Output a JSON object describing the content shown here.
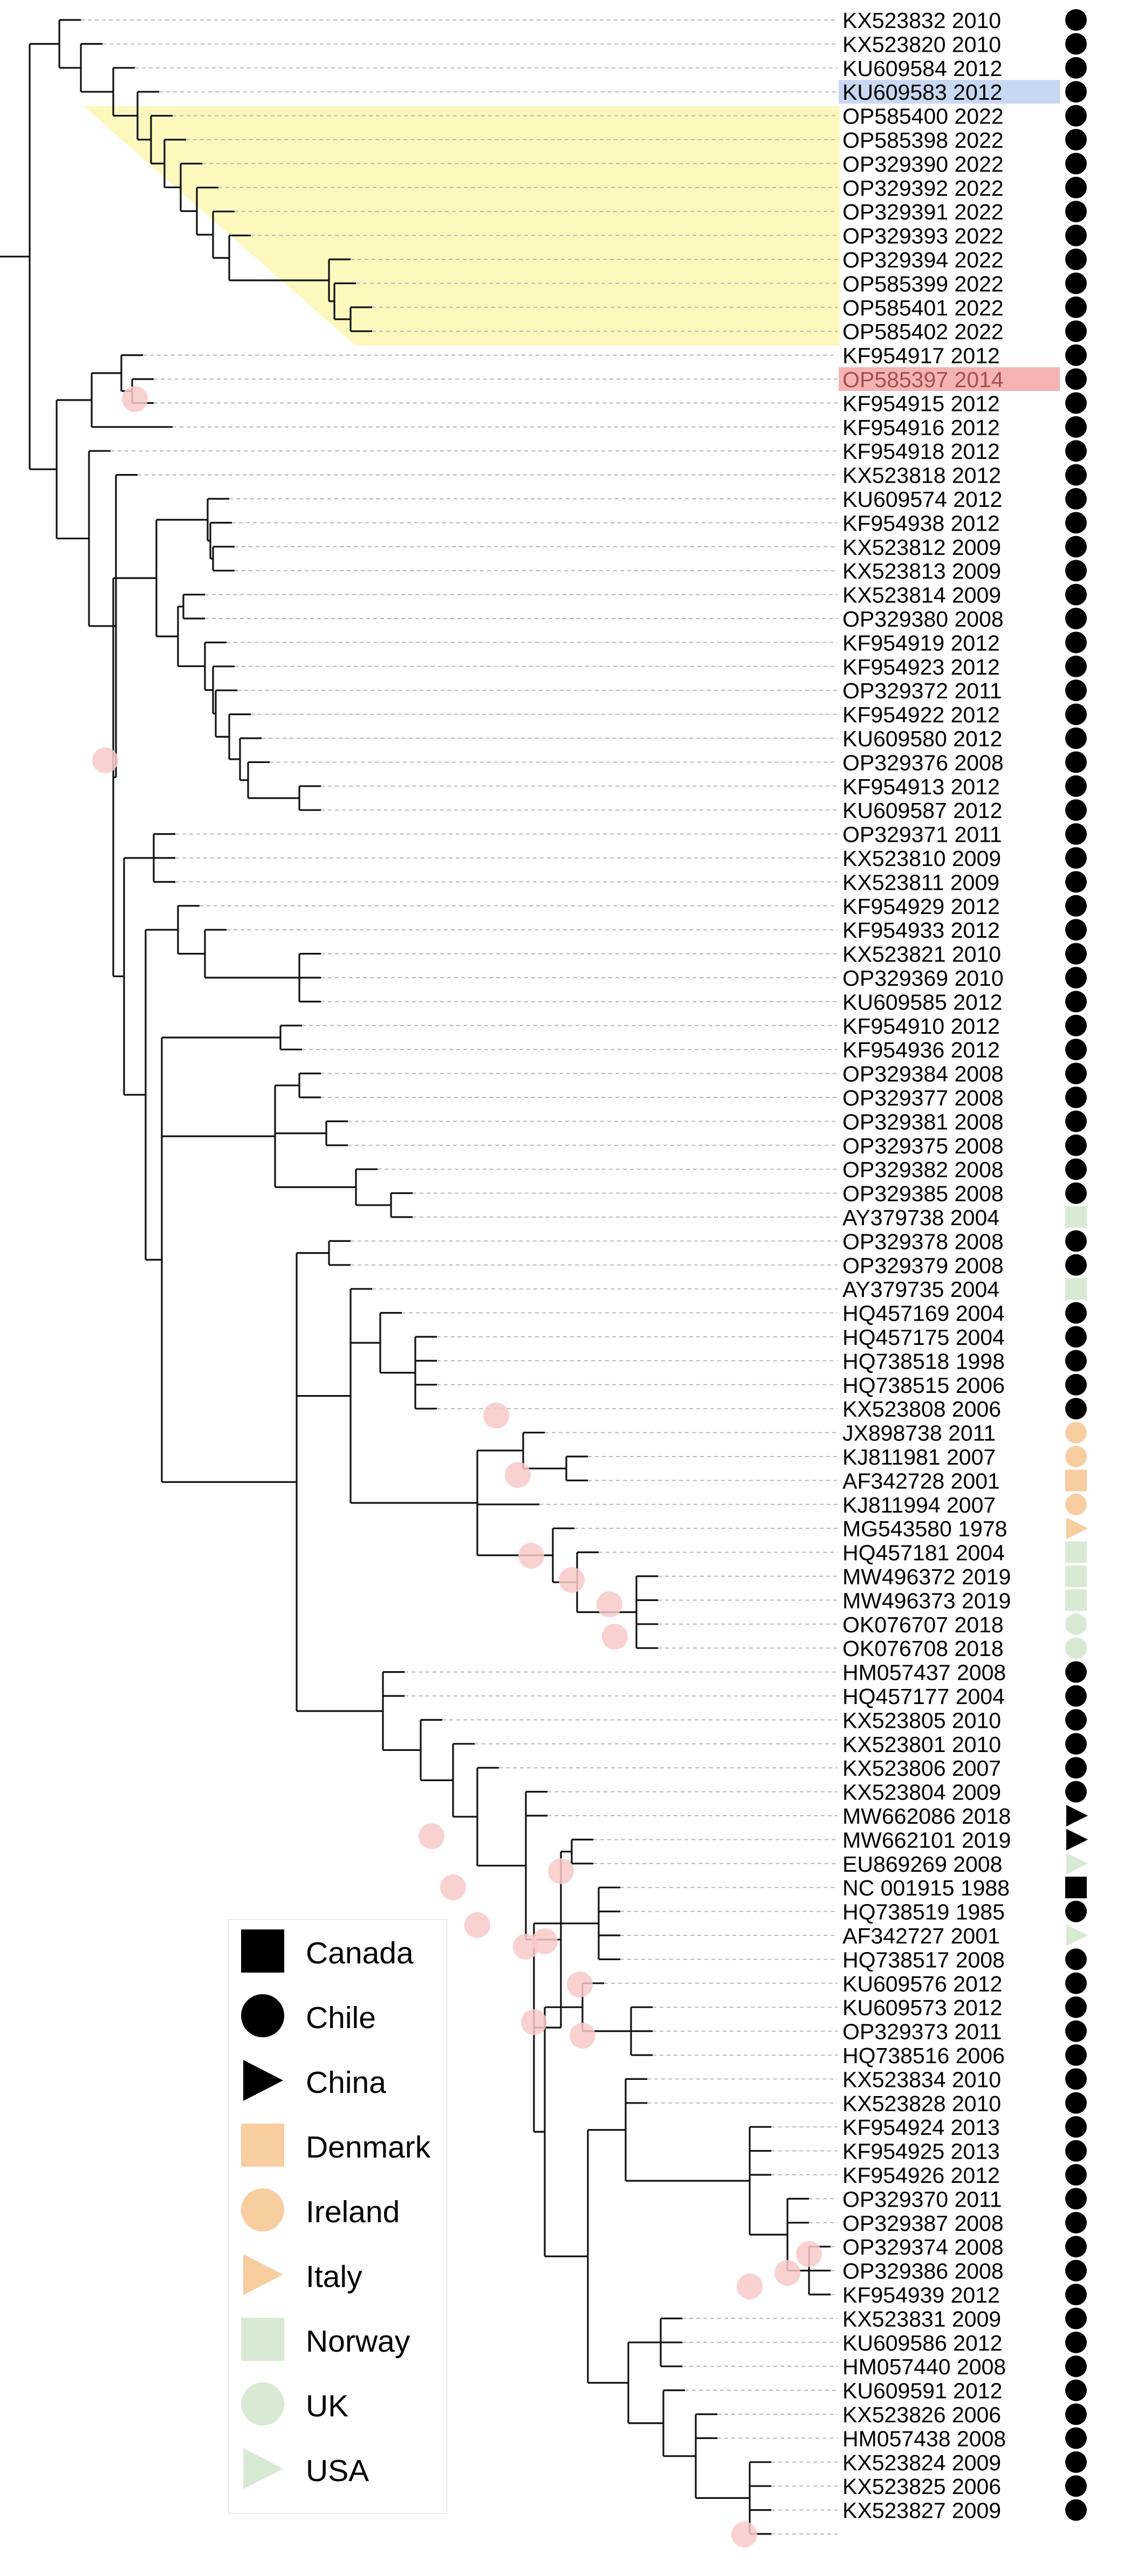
{
  "colors": {
    "black": "#000000",
    "highlight_blue": "#c9d8f2",
    "highlight_red": "#f6b3b3",
    "highlight_yellow": "#fdf8bd",
    "denmark": "#f8cda0",
    "ireland": "#f8cda0",
    "italy": "#f8cda0",
    "norway": "#d8ead3",
    "uk": "#d8ead3",
    "usa": "#d8ead3",
    "node_support": "#f9c9c9"
  },
  "legend": {
    "items": [
      {
        "label": "Canada",
        "shape": "square",
        "color": "#000000"
      },
      {
        "label": "Chile",
        "shape": "circle",
        "color": "#000000"
      },
      {
        "label": "China",
        "shape": "triangle",
        "color": "#000000"
      },
      {
        "label": "Denmark",
        "shape": "square",
        "color": "#f8cda0"
      },
      {
        "label": "Ireland",
        "shape": "circle",
        "color": "#f8cda0"
      },
      {
        "label": "Italy",
        "shape": "triangle",
        "color": "#f8cda0"
      },
      {
        "label": "Norway",
        "shape": "square",
        "color": "#d8ead3"
      },
      {
        "label": "UK",
        "shape": "circle",
        "color": "#d8ead3"
      },
      {
        "label": "USA",
        "shape": "triangle",
        "color": "#d8ead3"
      }
    ]
  },
  "tips": [
    {
      "label": "KX523832 2010",
      "country": "Chile"
    },
    {
      "label": "KX523820 2010",
      "country": "Chile"
    },
    {
      "label": "KU609584 2012",
      "country": "Chile"
    },
    {
      "label": "KU609583 2012",
      "country": "Chile",
      "highlight": "blue"
    },
    {
      "label": "OP585400 2022",
      "country": "Chile",
      "highlight": "yellow"
    },
    {
      "label": "OP585398 2022",
      "country": "Chile",
      "highlight": "yellow"
    },
    {
      "label": "OP329390 2022",
      "country": "Chile",
      "highlight": "yellow"
    },
    {
      "label": "OP329392 2022",
      "country": "Chile",
      "highlight": "yellow"
    },
    {
      "label": "OP329391 2022",
      "country": "Chile",
      "highlight": "yellow"
    },
    {
      "label": "OP329393 2022",
      "country": "Chile",
      "highlight": "yellow"
    },
    {
      "label": "OP329394 2022",
      "country": "Chile",
      "highlight": "yellow"
    },
    {
      "label": "OP585399 2022",
      "country": "Chile",
      "highlight": "yellow"
    },
    {
      "label": "OP585401 2022",
      "country": "Chile",
      "highlight": "yellow"
    },
    {
      "label": "OP585402 2022",
      "country": "Chile",
      "highlight": "yellow"
    },
    {
      "label": "KF954917 2012",
      "country": "Chile"
    },
    {
      "label": "OP585397 2014",
      "country": "Chile",
      "highlight": "red"
    },
    {
      "label": "KF954915 2012",
      "country": "Chile"
    },
    {
      "label": "KF954916 2012",
      "country": "Chile"
    },
    {
      "label": "KF954918 2012",
      "country": "Chile"
    },
    {
      "label": "KX523818 2012",
      "country": "Chile"
    },
    {
      "label": "KU609574 2012",
      "country": "Chile"
    },
    {
      "label": "KF954938 2012",
      "country": "Chile"
    },
    {
      "label": "KX523812 2009",
      "country": "Chile"
    },
    {
      "label": "KX523813 2009",
      "country": "Chile"
    },
    {
      "label": "KX523814 2009",
      "country": "Chile"
    },
    {
      "label": "OP329380 2008",
      "country": "Chile"
    },
    {
      "label": "KF954919 2012",
      "country": "Chile"
    },
    {
      "label": "KF954923 2012",
      "country": "Chile"
    },
    {
      "label": "OP329372 2011",
      "country": "Chile"
    },
    {
      "label": "KF954922 2012",
      "country": "Chile"
    },
    {
      "label": "KU609580 2012",
      "country": "Chile"
    },
    {
      "label": "OP329376 2008",
      "country": "Chile"
    },
    {
      "label": "KF954913 2012",
      "country": "Chile"
    },
    {
      "label": "KU609587 2012",
      "country": "Chile"
    },
    {
      "label": "OP329371 2011",
      "country": "Chile"
    },
    {
      "label": "KX523810 2009",
      "country": "Chile"
    },
    {
      "label": "KX523811 2009",
      "country": "Chile"
    },
    {
      "label": "KF954929 2012",
      "country": "Chile"
    },
    {
      "label": "KF954933 2012",
      "country": "Chile"
    },
    {
      "label": "KX523821 2010",
      "country": "Chile"
    },
    {
      "label": "OP329369 2010",
      "country": "Chile"
    },
    {
      "label": "KU609585 2012",
      "country": "Chile"
    },
    {
      "label": "KF954910 2012",
      "country": "Chile"
    },
    {
      "label": "KF954936 2012",
      "country": "Chile"
    },
    {
      "label": "OP329384 2008",
      "country": "Chile"
    },
    {
      "label": "OP329377 2008",
      "country": "Chile"
    },
    {
      "label": "OP329381 2008",
      "country": "Chile"
    },
    {
      "label": "OP329375 2008",
      "country": "Chile"
    },
    {
      "label": "OP329382 2008",
      "country": "Chile"
    },
    {
      "label": "OP329385 2008",
      "country": "Chile"
    },
    {
      "label": "AY379738 2004",
      "country": "Norway"
    },
    {
      "label": "OP329378 2008",
      "country": "Chile"
    },
    {
      "label": "OP329379 2008",
      "country": "Chile"
    },
    {
      "label": "AY379735 2004",
      "country": "Norway"
    },
    {
      "label": "HQ457169 2004",
      "country": "Chile"
    },
    {
      "label": "HQ457175 2004",
      "country": "Chile"
    },
    {
      "label": "HQ738518 1998",
      "country": "Chile"
    },
    {
      "label": "HQ738515 2006",
      "country": "Chile"
    },
    {
      "label": "KX523808 2006",
      "country": "Chile"
    },
    {
      "label": "JX898738 2011",
      "country": "Ireland"
    },
    {
      "label": "KJ811981 2007",
      "country": "Ireland"
    },
    {
      "label": "AF342728 2001",
      "country": "Denmark"
    },
    {
      "label": "KJ811994 2007",
      "country": "Ireland"
    },
    {
      "label": "MG543580 1978",
      "country": "Italy"
    },
    {
      "label": "HQ457181 2004",
      "country": "Norway"
    },
    {
      "label": "MW496372 2019",
      "country": "Norway"
    },
    {
      "label": "MW496373 2019",
      "country": "Norway"
    },
    {
      "label": "OK076707 2018",
      "country": "UK"
    },
    {
      "label": "OK076708 2018",
      "country": "UK"
    },
    {
      "label": "HM057437 2008",
      "country": "Chile"
    },
    {
      "label": "HQ457177 2004",
      "country": "Chile"
    },
    {
      "label": "KX523805 2010",
      "country": "Chile"
    },
    {
      "label": "KX523801 2010",
      "country": "Chile"
    },
    {
      "label": "KX523806 2007",
      "country": "Chile"
    },
    {
      "label": "KX523804 2009",
      "country": "Chile"
    },
    {
      "label": "MW662086 2018",
      "country": "China"
    },
    {
      "label": "MW662101 2019",
      "country": "China"
    },
    {
      "label": "EU869269 2008",
      "country": "USA"
    },
    {
      "label": "NC 001915 1988",
      "country": "Canada"
    },
    {
      "label": "HQ738519 1985",
      "country": "Chile"
    },
    {
      "label": "AF342727 2001",
      "country": "USA"
    },
    {
      "label": "HQ738517 2008",
      "country": "Chile"
    },
    {
      "label": "KU609576 2012",
      "country": "Chile"
    },
    {
      "label": "KU609573 2012",
      "country": "Chile"
    },
    {
      "label": "OP329373 2011",
      "country": "Chile"
    },
    {
      "label": "HQ738516 2006",
      "country": "Chile"
    },
    {
      "label": "KX523834 2010",
      "country": "Chile"
    },
    {
      "label": "KX523828 2010",
      "country": "Chile"
    },
    {
      "label": "KF954924 2013",
      "country": "Chile"
    },
    {
      "label": "KF954925 2013",
      "country": "Chile"
    },
    {
      "label": "KF954926 2012",
      "country": "Chile"
    },
    {
      "label": "OP329370 2011",
      "country": "Chile"
    },
    {
      "label": "OP329387 2008",
      "country": "Chile"
    },
    {
      "label": "OP329374 2008",
      "country": "Chile"
    },
    {
      "label": "OP329386 2008",
      "country": "Chile"
    },
    {
      "label": "KF954939 2012",
      "country": "Chile"
    },
    {
      "label": "KX523831 2009",
      "country": "Chile"
    },
    {
      "label": "KU609586 2012",
      "country": "Chile"
    },
    {
      "label": "HM057440 2008",
      "country": "Chile"
    },
    {
      "label": "KU609591 2012",
      "country": "Chile"
    },
    {
      "label": "KX523826 2006",
      "country": "Chile"
    },
    {
      "label": "HM057438 2008",
      "country": "Chile"
    },
    {
      "label": "KX523824 2009",
      "country": "Chile"
    },
    {
      "label": "KX523825 2006",
      "country": "Chile"
    },
    {
      "label": "KX523827 2009",
      "country": "Chile"
    }
  ]
}
